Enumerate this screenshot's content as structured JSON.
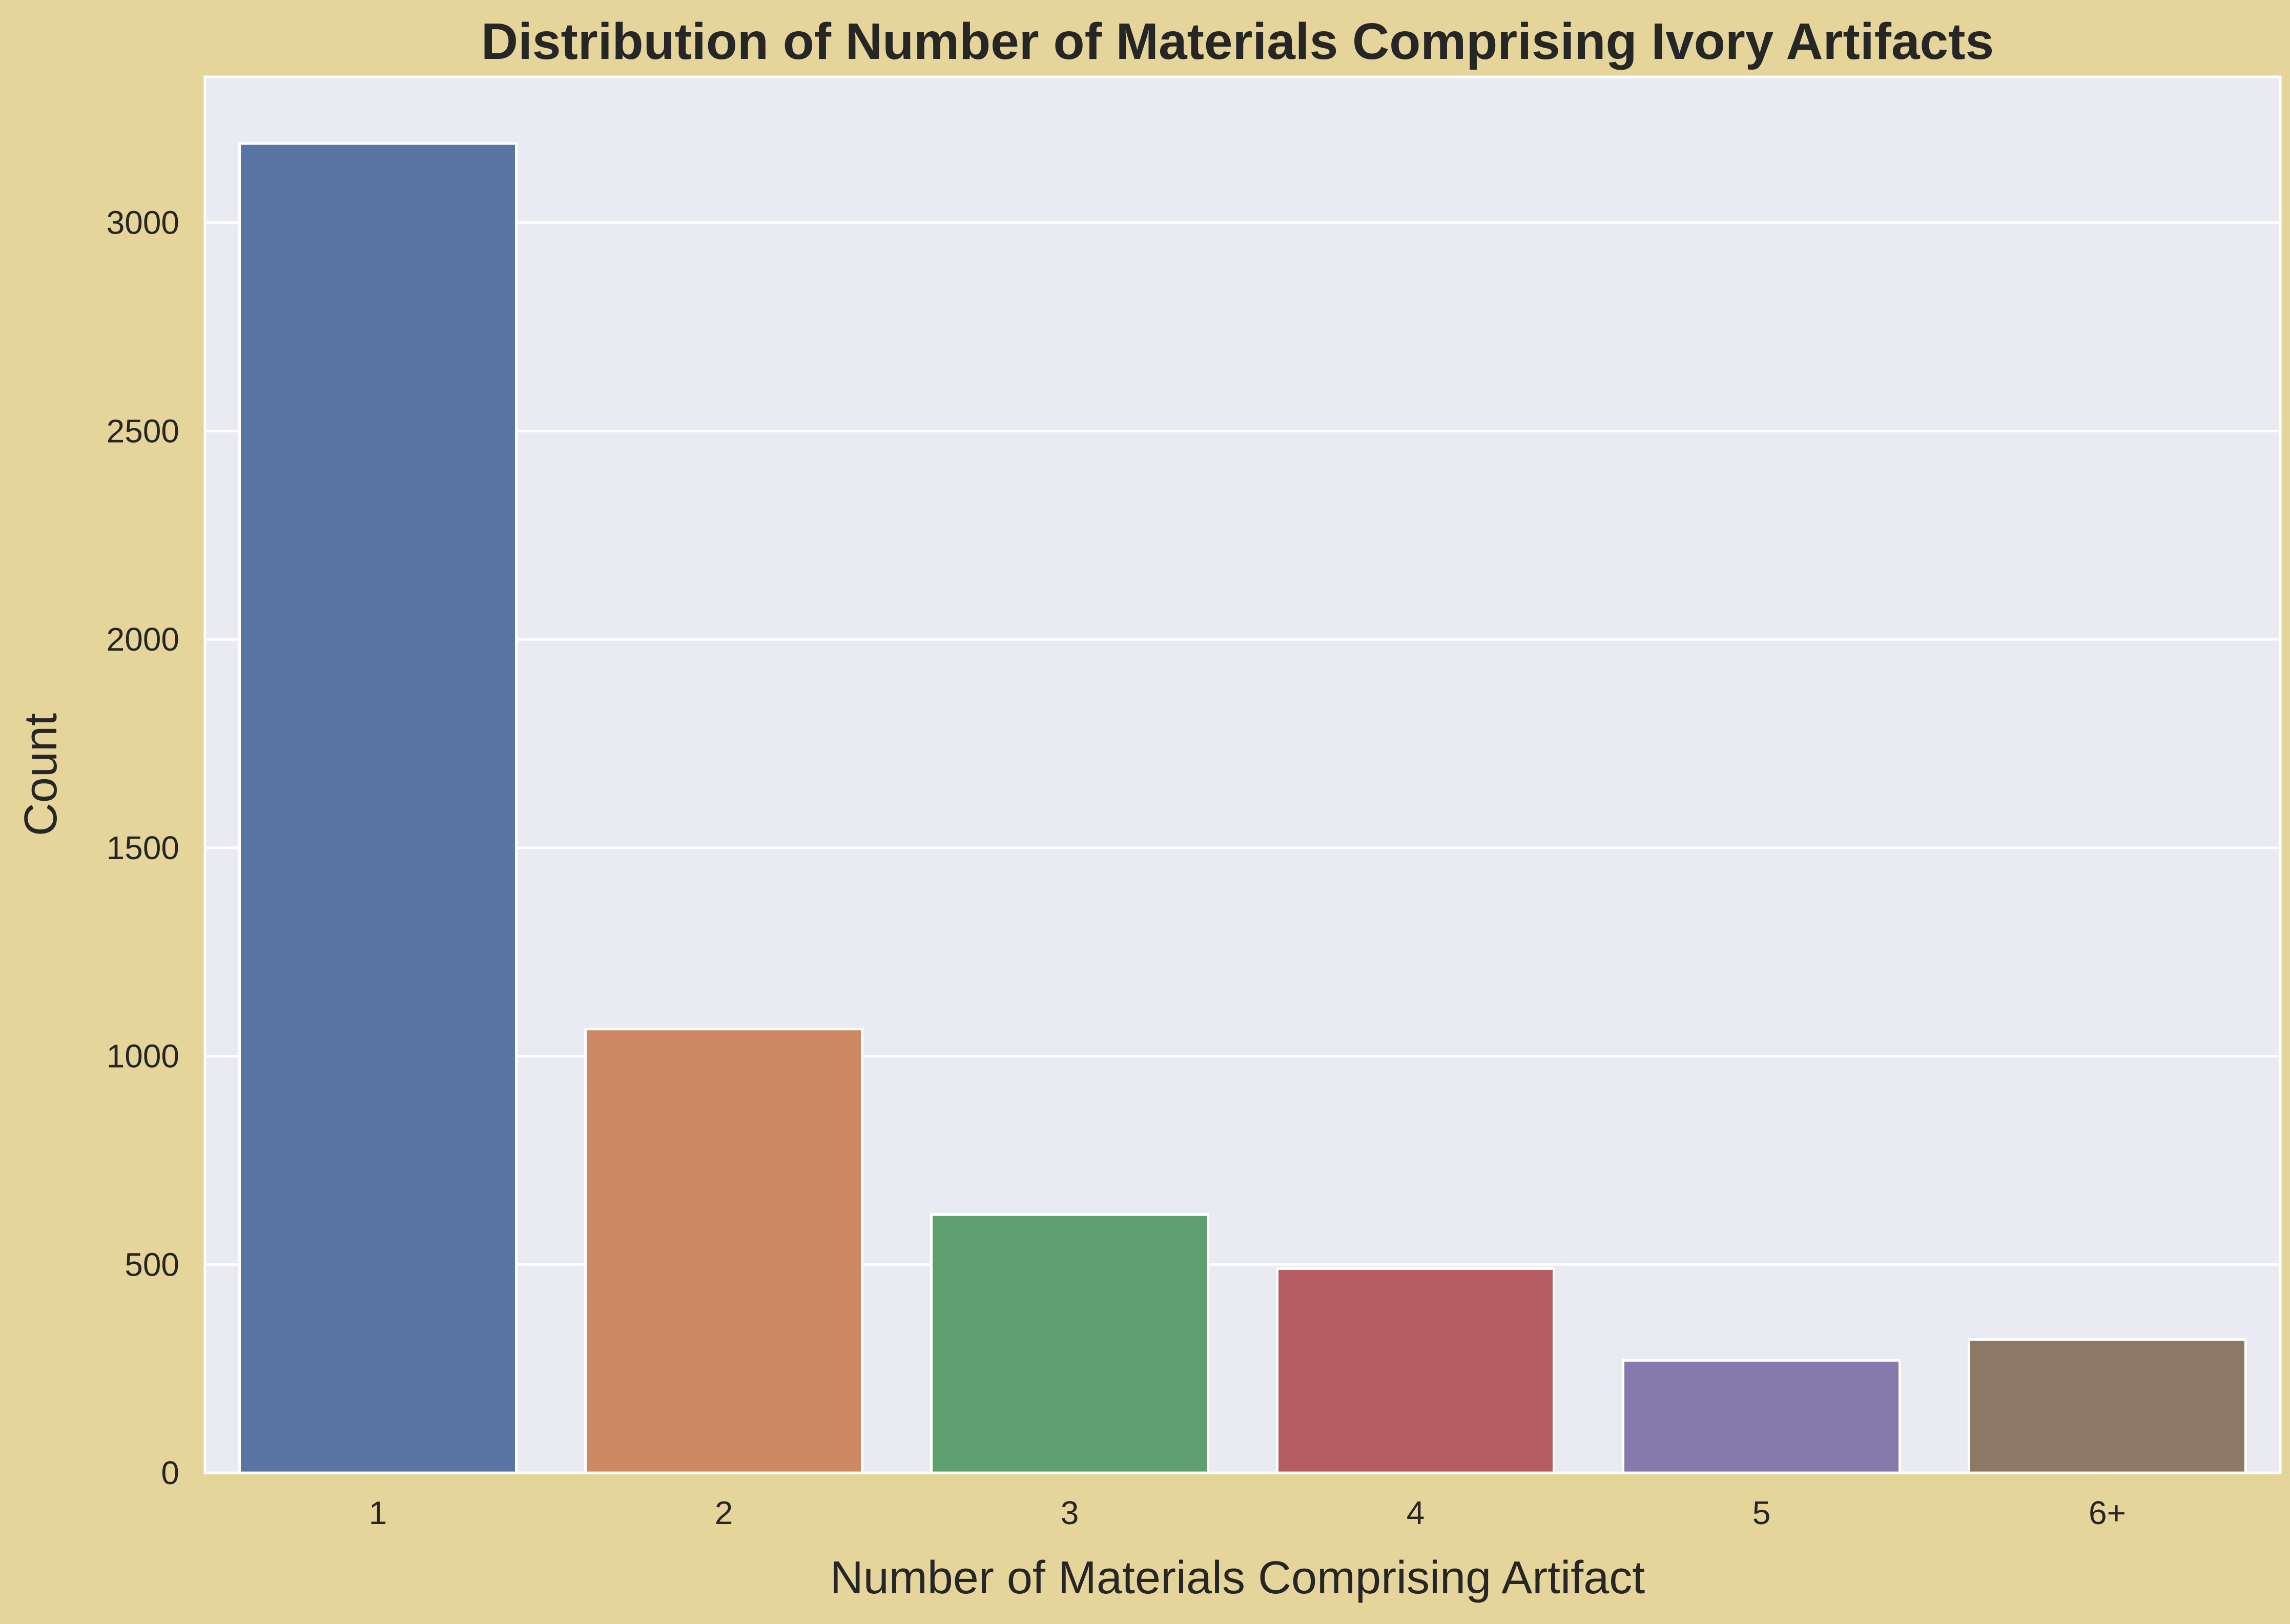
{
  "chart_data": {
    "type": "bar",
    "title": "Distribution of Number of Materials Comprising Ivory Artifacts",
    "xlabel": "Number of Materials Comprising Artifact",
    "ylabel": "Count",
    "categories": [
      "1",
      "2",
      "3",
      "4",
      "5",
      "6+"
    ],
    "values": [
      3190,
      1065,
      620,
      490,
      270,
      320
    ],
    "colors": [
      "#5875a4",
      "#cc8963",
      "#5f9e6e",
      "#b55d60",
      "#857aab",
      "#8d7866"
    ],
    "ylim": [
      0,
      3350
    ],
    "yticks": [
      0,
      500,
      1000,
      1500,
      2000,
      2500,
      3000
    ],
    "grid": true,
    "background": "#eaeaf2",
    "figure_background": "#e6d59b"
  }
}
